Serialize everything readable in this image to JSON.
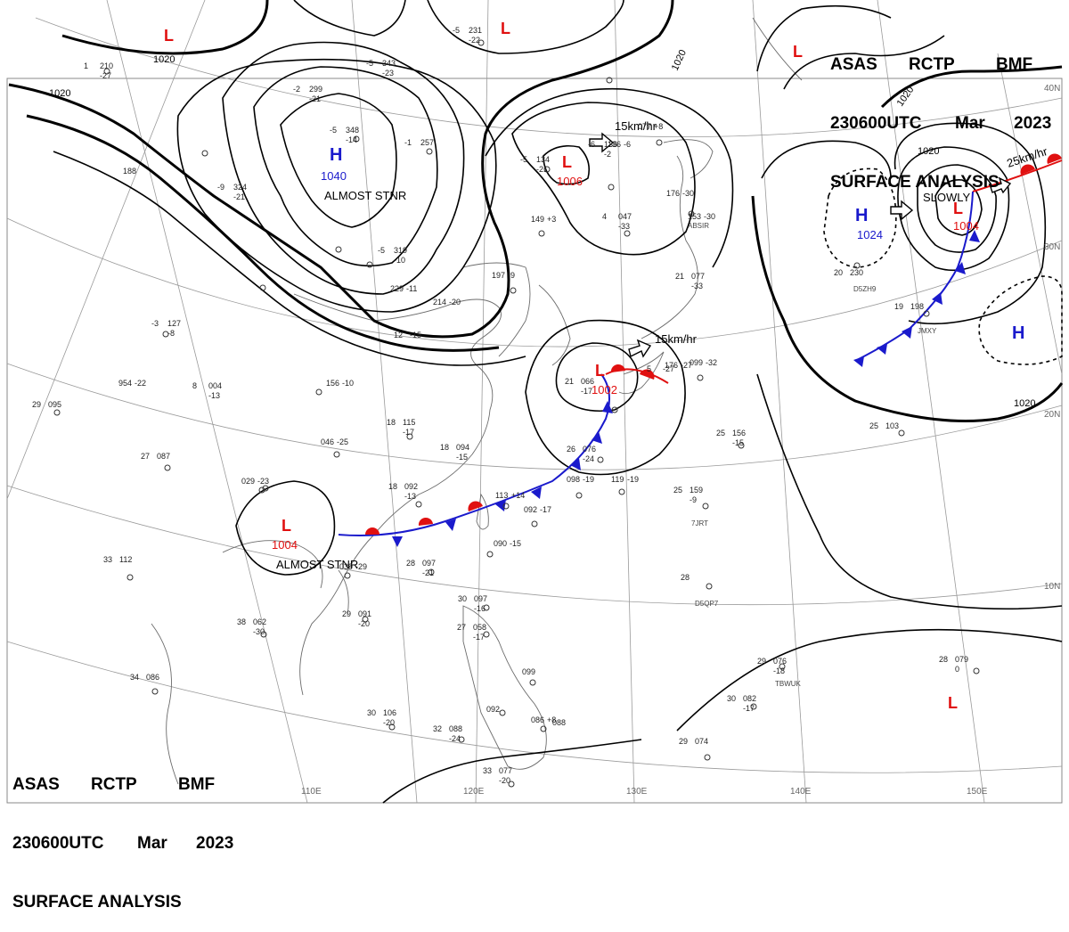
{
  "header": {
    "center": "ASAS",
    "agency": "RCTP",
    "code": "BMF",
    "time": "230600UTC",
    "month": "Mar",
    "year": "2023",
    "product": "SURFACE ANALYSIS"
  },
  "lat_labels": [
    "40N",
    "30N",
    "20N",
    "10N"
  ],
  "lon_labels": [
    "110E",
    "120E",
    "130E",
    "140E",
    "150E"
  ],
  "isobar_labels": [
    "1020",
    "1020",
    "1020",
    "1020",
    "1020",
    "1020"
  ],
  "centers": [
    {
      "type": "H",
      "value": "1040",
      "note": "ALMOST STNR"
    },
    {
      "type": "L",
      "value": "1006",
      "motion": "15km/hr"
    },
    {
      "type": "L",
      "value": "1002",
      "motion": "15km/hr"
    },
    {
      "type": "L",
      "value": "1004",
      "note": "ALMOST STNR"
    },
    {
      "type": "H",
      "value": "1024"
    },
    {
      "type": "L",
      "value": "1004",
      "note": "SLOWLY",
      "motion": "25km/hr"
    },
    {
      "type": "H",
      "value": ""
    },
    {
      "type": "L",
      "value": ""
    },
    {
      "type": "L",
      "value": ""
    },
    {
      "type": "L",
      "value": ""
    }
  ],
  "stations": [
    [
      "-5",
      "231",
      "-22"
    ],
    [
      "-5",
      "343",
      "-23"
    ],
    [
      "-2",
      "299",
      "-21"
    ],
    [
      "-5",
      "348",
      "-14"
    ],
    [
      "-1",
      "257",
      ""
    ],
    [
      "1",
      "210",
      "-27"
    ],
    [
      "188",
      "",
      ""
    ],
    [
      "-9",
      "324",
      "-21"
    ],
    [
      "-5",
      "319",
      "-10"
    ],
    [
      "229",
      "-11",
      ""
    ],
    [
      "214",
      "-20",
      ""
    ],
    [
      "12",
      "-15",
      ""
    ],
    [
      "-3",
      "127",
      "-8"
    ],
    [
      "954",
      "-22",
      ""
    ],
    [
      "8",
      "004",
      "-13"
    ],
    [
      "29",
      "095",
      ""
    ],
    [
      "18",
      "115",
      "-17"
    ],
    [
      "156",
      "-10",
      ""
    ],
    [
      "046",
      "-25",
      ""
    ],
    [
      "18",
      "094",
      "-15"
    ],
    [
      "27",
      "087",
      ""
    ],
    [
      "029",
      "-23",
      ""
    ],
    [
      "18",
      "092",
      "-13"
    ],
    [
      "-5",
      "134",
      "-21"
    ],
    [
      "-6",
      "136",
      "-2"
    ],
    [
      "077",
      "+8"
    ],
    [
      "149",
      "+3"
    ],
    [
      "4",
      "047",
      "-33"
    ],
    [
      "153",
      "-30"
    ],
    [
      "197",
      "-9"
    ],
    [
      "21",
      "077",
      "-33"
    ],
    [
      "5",
      "-27"
    ],
    [
      "099",
      "-32"
    ],
    [
      "21",
      "066",
      "-17"
    ],
    [
      "26",
      "076",
      "-24"
    ],
    [
      "098",
      "-19"
    ],
    [
      "119",
      "-19"
    ],
    [
      "113",
      "+14"
    ],
    [
      "092",
      "-17"
    ],
    [
      "090",
      "-15"
    ],
    [
      "28",
      "097",
      "-21"
    ],
    [
      "039",
      "-29"
    ],
    [
      "33",
      "112",
      ""
    ],
    [
      "29",
      "091",
      "-20"
    ],
    [
      "38",
      "062",
      "-30"
    ],
    [
      "34",
      "086",
      ""
    ],
    [
      "30",
      "097",
      "-16"
    ],
    [
      "27",
      "058",
      "-17"
    ],
    [
      "30",
      "106",
      "-20"
    ],
    [
      "32",
      "088",
      "-24"
    ],
    [
      "086",
      "+8"
    ],
    [
      "088",
      ""
    ],
    [
      "33",
      "077",
      "-20"
    ],
    [
      "29",
      "074",
      ""
    ],
    [
      "092",
      ""
    ],
    [
      "099",
      ""
    ],
    [
      "25",
      "156",
      "-15"
    ],
    [
      "25",
      "159",
      "-9"
    ],
    [
      "28",
      ""
    ],
    [
      "29",
      "076",
      "-18"
    ],
    [
      "30",
      "082",
      "-17"
    ],
    [
      "28",
      "079",
      "0"
    ],
    [
      "25",
      "103",
      ""
    ],
    [
      "20",
      "230",
      ""
    ],
    [
      "19",
      "198",
      ""
    ],
    [
      "176",
      "-30"
    ],
    [
      "176",
      "-27"
    ],
    [
      "136",
      "-6"
    ]
  ],
  "ship_ids": [
    "ABSIR",
    "D5ZH9",
    "JMXY",
    "7JRT",
    "D5QP7",
    "TBWUK"
  ]
}
